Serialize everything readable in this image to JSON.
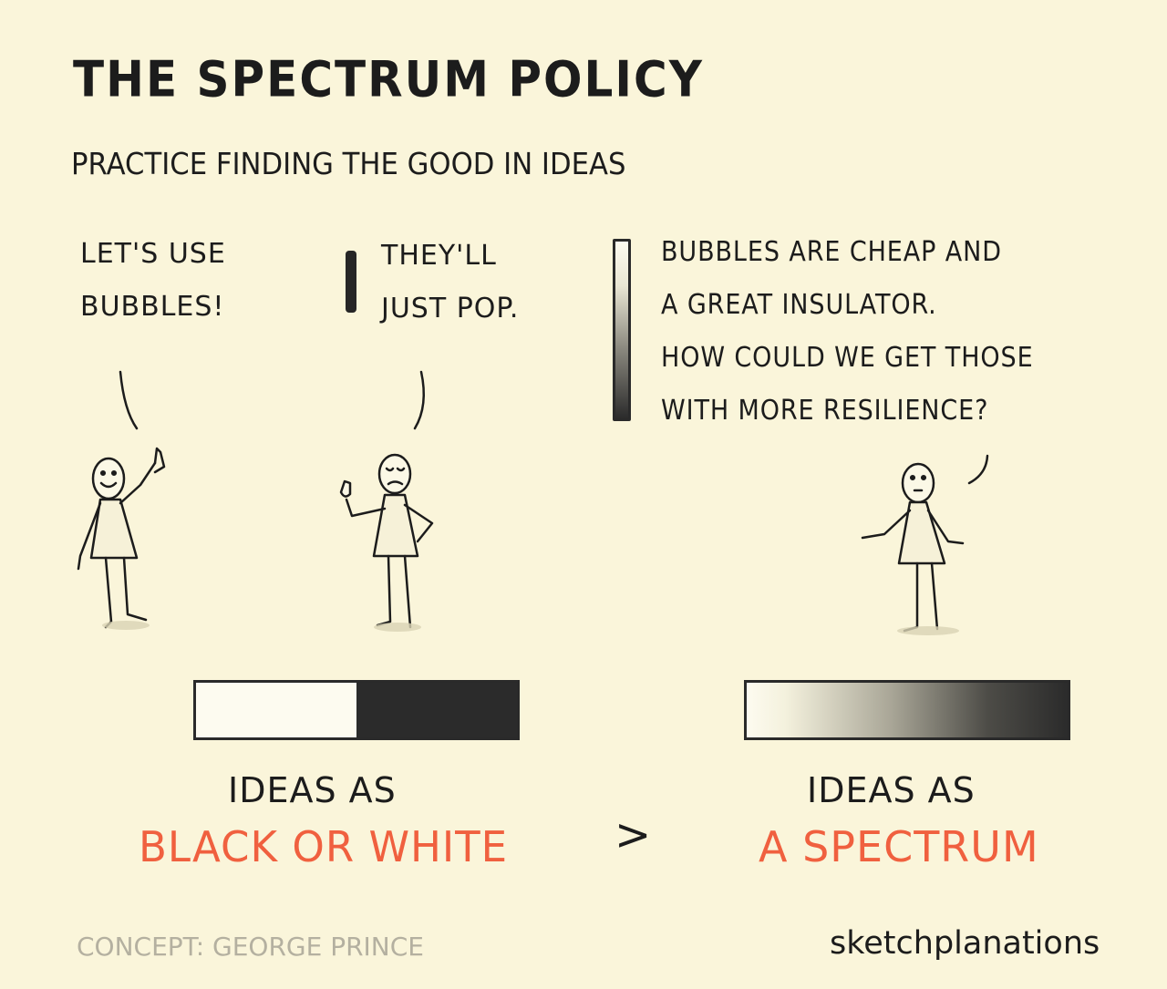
{
  "title": "THE SPECTRUM POLICY",
  "subtitle": "PRACTICE FINDING THE GOOD IN IDEAS",
  "speech": {
    "first": [
      "LET'S USE",
      "BUBBLES!"
    ],
    "second": [
      "THEY'LL",
      "JUST POP."
    ],
    "third": [
      "BUBBLES ARE CHEAP AND",
      "A GREAT INSULATOR.",
      "HOW COULD WE GET THOSE",
      "WITH MORE RESILIENCE?"
    ]
  },
  "left_caption": {
    "line1": "IDEAS AS",
    "line2": "BLACK OR WHITE"
  },
  "comparison_symbol": ">",
  "right_caption": {
    "line1": "IDEAS AS",
    "line2": "A SPECTRUM"
  },
  "credit": "CONCEPT: GEORGE PRINCE",
  "brand": "sketchplanations",
  "colors": {
    "background": "#faf5da",
    "ink": "#1c1c1c",
    "accent": "#f0603f",
    "credit": "#b4b0a0"
  }
}
